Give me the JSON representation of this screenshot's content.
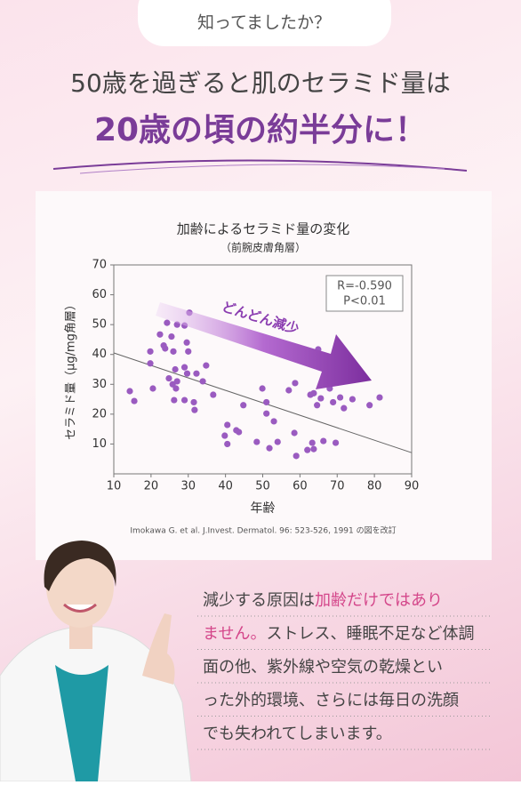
{
  "badge": "知ってましたか？",
  "headline": {
    "line1": "50歳を過ぎると肌のセラミド量は",
    "line2": "20歳の頃の約半分に！"
  },
  "chart_data": {
    "type": "scatter",
    "title": "加齢によるセラミド量の変化",
    "subtitle": "（前腕皮膚角層）",
    "x_label": "年齢",
    "y_label": "セラミド量（μg/mg角層）",
    "x": [
      14.3,
      15.5,
      19.8,
      19.8,
      20.5,
      22.4,
      23.4,
      23.8,
      24.3,
      25.5,
      26,
      24.8,
      25.8,
      26.5,
      26.7,
      27,
      26.2,
      27,
      29,
      29.6,
      30,
      30.3,
      29,
      29.7,
      29,
      31.5,
      31.7,
      32.2,
      33.9,
      34.8,
      36.7,
      40.5,
      39.8,
      40.5,
      42.9,
      43.6,
      44.8,
      48.4,
      49.9,
      51,
      51,
      51.8,
      53,
      54,
      57,
      58.5,
      58.7,
      59,
      62,
      62.8,
      63.3,
      63.7,
      63.7,
      64.6,
      64.9,
      65.6,
      66.3,
      68,
      68.9,
      69.6,
      70.8,
      71.8,
      74.1,
      78.7,
      81.4
    ],
    "values": [
      27.7,
      24.4,
      37,
      41,
      28.6,
      46.7,
      43,
      42,
      50.6,
      46,
      41,
      32,
      30,
      35,
      28.6,
      31,
      24.7,
      50,
      49.7,
      44,
      41,
      54,
      35.7,
      33.6,
      24.7,
      24,
      21.4,
      33.6,
      31,
      36.3,
      26.5,
      16.4,
      12.8,
      10,
      14.6,
      14,
      23,
      10.7,
      28.6,
      24,
      20.2,
      8.6,
      17.6,
      10.7,
      28,
      13.7,
      30.4,
      6,
      8,
      26.5,
      10.4,
      27,
      8.3,
      23,
      41.7,
      25.3,
      11,
      28.6,
      24,
      10.4,
      25.6,
      22,
      25,
      23,
      25.6
    ],
    "color": "#9a5bc0",
    "trend": {
      "x": [
        10,
        90
      ],
      "values": [
        40.5,
        7.1
      ],
      "color": "#666666"
    },
    "xlim": [
      10,
      90
    ],
    "ylim": [
      0,
      70
    ],
    "xticks": [
      10,
      20,
      30,
      40,
      50,
      60,
      70,
      80,
      90
    ],
    "yticks": [
      10,
      20,
      30,
      40,
      50,
      60,
      70
    ],
    "annotations": {
      "stats": [
        "R=-0.590",
        "P<0.01"
      ],
      "arrow_text": "どんどん減少"
    },
    "source": "Imokawa G. et al. J.Invest. Dermatol. 96: 523-526, 1991 の図を改訂"
  },
  "body": {
    "lines": [
      [
        {
          "text": "減少する原因は"
        },
        {
          "text": "加齢だけではあり",
          "highlight": true
        }
      ],
      [
        {
          "text": "ません。",
          "highlight": true
        },
        {
          "text": "ストレス、睡眠不足など体調"
        }
      ],
      [
        {
          "text": "面の他、紫外線や空気の乾燥とい"
        }
      ],
      [
        {
          "text": "った外的環境、さらには毎日の洗顔"
        }
      ],
      [
        {
          "text": "でも失われてしまいます。"
        }
      ]
    ],
    "highlight_color": "#d4468a"
  }
}
